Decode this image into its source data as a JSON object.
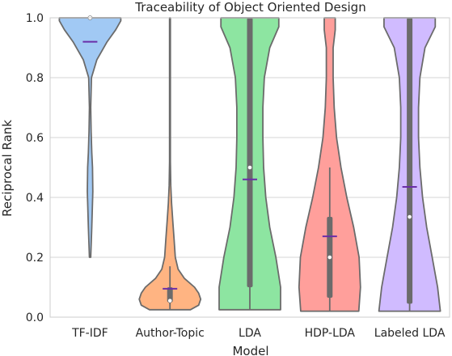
{
  "chart_data": {
    "type": "violin",
    "title": "Traceability of Object Oriented Design",
    "xlabel": "Model",
    "ylabel": "Reciprocal Rank",
    "ylim": [
      0,
      1.0
    ],
    "yticks": [
      "0.0",
      "0.2",
      "0.4",
      "0.6",
      "0.8",
      "1.0"
    ],
    "grid": true,
    "categories": [
      "TF-IDF",
      "Author-Topic",
      "LDA",
      "HDP-LDA",
      "Labeled LDA"
    ],
    "colors": [
      "#a1c9f4",
      "#ffb482",
      "#8de5a1",
      "#ff9f9b",
      "#d0bbff"
    ],
    "edge_color": "#6b6b6b",
    "mean_marker_color": "#6a2ea8",
    "series": [
      {
        "min": 0.2,
        "max": 1.0,
        "q1": 1.0,
        "median": 1.0,
        "q3": 1.0,
        "whisker_low": 1.0,
        "whisker_high": 1.0,
        "mean": 0.92,
        "density": [
          [
            0.2,
            0.02
          ],
          [
            0.3,
            0.05
          ],
          [
            0.42,
            0.08
          ],
          [
            0.5,
            0.07
          ],
          [
            0.55,
            0.05
          ],
          [
            0.62,
            0.03
          ],
          [
            0.7,
            0.02
          ],
          [
            0.8,
            0.04
          ],
          [
            0.86,
            0.2
          ],
          [
            0.92,
            0.5
          ],
          [
            0.96,
            0.75
          ],
          [
            0.99,
            0.9
          ],
          [
            1.0,
            0.9
          ]
        ]
      },
      {
        "min": 0.025,
        "max": 1.0,
        "q1": 0.05,
        "median": 0.055,
        "q3": 0.1,
        "whisker_low": 0.025,
        "whisker_high": 0.17,
        "mean": 0.095,
        "density": [
          [
            0.025,
            0.5
          ],
          [
            0.04,
            0.7
          ],
          [
            0.06,
            0.75
          ],
          [
            0.08,
            0.7
          ],
          [
            0.1,
            0.6
          ],
          [
            0.13,
            0.35
          ],
          [
            0.16,
            0.2
          ],
          [
            0.2,
            0.13
          ],
          [
            0.26,
            0.1
          ],
          [
            0.32,
            0.07
          ],
          [
            0.38,
            0.04
          ],
          [
            0.44,
            0.02
          ],
          [
            0.52,
            0.01
          ],
          [
            0.6,
            0.01
          ],
          [
            1.0,
            0.01
          ]
        ]
      },
      {
        "min": 0.025,
        "max": 1.0,
        "q1": 0.1,
        "median": 0.5,
        "q3": 1.0,
        "whisker_low": 0.025,
        "whisker_high": 1.0,
        "mean": 0.46,
        "density": [
          [
            0.025,
            0.85
          ],
          [
            0.1,
            0.85
          ],
          [
            0.2,
            0.72
          ],
          [
            0.3,
            0.55
          ],
          [
            0.4,
            0.44
          ],
          [
            0.5,
            0.38
          ],
          [
            0.6,
            0.36
          ],
          [
            0.7,
            0.36
          ],
          [
            0.8,
            0.4
          ],
          [
            0.9,
            0.55
          ],
          [
            0.97,
            0.8
          ],
          [
            1.0,
            0.8
          ]
        ]
      },
      {
        "min": 0.02,
        "max": 1.0,
        "q1": 0.065,
        "median": 0.2,
        "q3": 0.335,
        "whisker_low": 0.02,
        "whisker_high": 0.5,
        "mean": 0.27,
        "density": [
          [
            0.02,
            0.85
          ],
          [
            0.1,
            0.9
          ],
          [
            0.2,
            0.86
          ],
          [
            0.3,
            0.7
          ],
          [
            0.4,
            0.5
          ],
          [
            0.5,
            0.33
          ],
          [
            0.6,
            0.2
          ],
          [
            0.7,
            0.13
          ],
          [
            0.8,
            0.1
          ],
          [
            0.9,
            0.1
          ],
          [
            0.96,
            0.16
          ],
          [
            1.0,
            0.16
          ]
        ]
      },
      {
        "min": 0.02,
        "max": 1.0,
        "q1": 0.045,
        "median": 0.335,
        "q3": 1.0,
        "whisker_low": 0.02,
        "whisker_high": 1.0,
        "mean": 0.435,
        "density": [
          [
            0.02,
            0.9
          ],
          [
            0.1,
            0.82
          ],
          [
            0.2,
            0.66
          ],
          [
            0.3,
            0.5
          ],
          [
            0.4,
            0.38
          ],
          [
            0.5,
            0.3
          ],
          [
            0.6,
            0.26
          ],
          [
            0.7,
            0.26
          ],
          [
            0.8,
            0.3
          ],
          [
            0.9,
            0.45
          ],
          [
            0.97,
            0.75
          ],
          [
            1.0,
            0.75
          ]
        ]
      }
    ]
  }
}
